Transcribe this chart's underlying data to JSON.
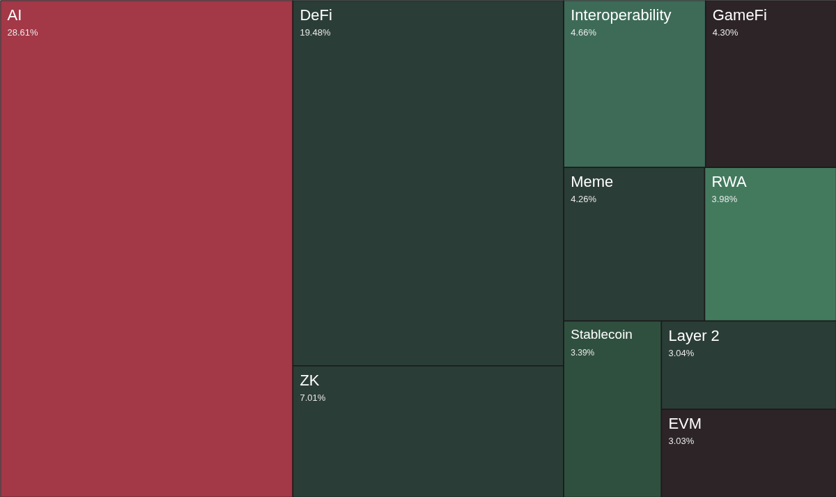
{
  "chart_data": {
    "type": "other",
    "categories": [
      "AI",
      "DeFi",
      "ZK",
      "Interoperability",
      "GameFi",
      "Meme",
      "RWA",
      "Stablecoin",
      "Layer 2",
      "EVM"
    ],
    "values": [
      28.61,
      19.48,
      7.01,
      4.66,
      4.3,
      4.26,
      3.98,
      3.39,
      3.04,
      3.03
    ],
    "value_labels": [
      "28.61%",
      "19.48%",
      "7.01%",
      "4.66%",
      "4.30%",
      "4.26%",
      "3.98%",
      "3.39%",
      "3.04%",
      "3.03%"
    ],
    "colors": [
      "#a33847",
      "#2b3d37",
      "#2b3d37",
      "#3d6b58",
      "#2d2428",
      "#2b3d37",
      "#437a5e",
      "#30503f",
      "#2b3d37",
      "#2d2428"
    ]
  }
}
